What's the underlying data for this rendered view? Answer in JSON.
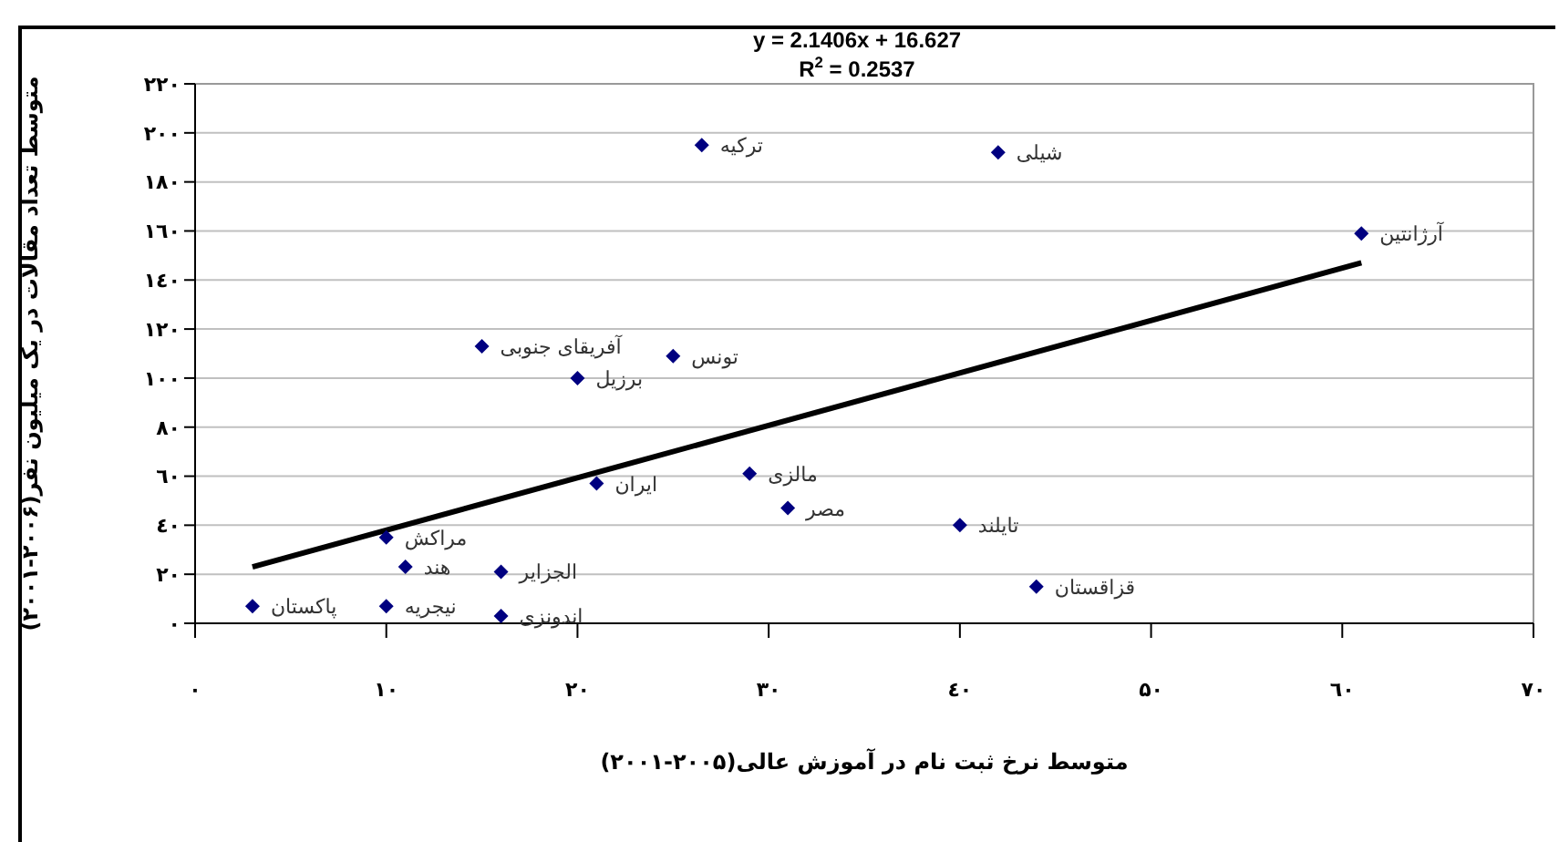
{
  "chart_data": {
    "type": "scatter",
    "xlabel": "متوسط نرخ  ثبت نام در آموزش عالی(۲۰۰۵-۲۰۰۱)",
    "ylabel": "متوسط تعداد مقالات در یک میلیون نفر(۲۰۰۶-۲۰۰۱)",
    "xlim": [
      0,
      70
    ],
    "xticks": [
      {
        "value": 0,
        "label": "۰"
      },
      {
        "value": 10,
        "label": "۱۰"
      },
      {
        "value": 20,
        "label": "۲۰"
      },
      {
        "value": 30,
        "label": "۳۰"
      },
      {
        "value": 40,
        "label": "٤۰"
      },
      {
        "value": 50,
        "label": "۵۰"
      },
      {
        "value": 60,
        "label": "٦۰"
      },
      {
        "value": 70,
        "label": "۷۰"
      }
    ],
    "ylim": [
      0,
      220
    ],
    "yticks": [
      {
        "value": 0,
        "label": "۰"
      },
      {
        "value": 20,
        "label": "۲۰"
      },
      {
        "value": 40,
        "label": "٤۰"
      },
      {
        "value": 60,
        "label": "٦۰"
      },
      {
        "value": 80,
        "label": "۸۰"
      },
      {
        "value": 100,
        "label": "۱۰۰"
      },
      {
        "value": 120,
        "label": "۱۲۰"
      },
      {
        "value": 140,
        "label": "۱٤۰"
      },
      {
        "value": 160,
        "label": "۱٦۰"
      },
      {
        "value": 180,
        "label": "۱۸۰"
      },
      {
        "value": 200,
        "label": "۲۰۰"
      },
      {
        "value": 220,
        "label": "۲۲۰"
      }
    ],
    "grid": "y",
    "marker": "diamond",
    "series": [
      {
        "color": "#000080",
        "x": [
          3,
          10,
          10,
          11,
          16,
          16,
          21,
          15,
          20,
          25,
          26.5,
          42,
          61,
          29,
          31,
          40,
          44
        ],
        "values": [
          7,
          7,
          35,
          23,
          21,
          3,
          57,
          113,
          100,
          109,
          195,
          192,
          159,
          61,
          47,
          40,
          15
        ]
      },
      {
        "type": "line",
        "color": "#000000",
        "x": [
          3,
          61
        ],
        "values": [
          23,
          147
        ],
        "line_style": "solid",
        "marker": "none"
      }
    ],
    "annotations": [
      "y = 2.1406x + 16.627",
      "R$^{2}$ = 0.2537",
      {
        "text": "پاکستان",
        "x": 3,
        "y": 7
      },
      {
        "text": "نیجریه",
        "x": 10,
        "y": 7
      },
      {
        "text": "مراکش",
        "x": 10,
        "y": 35
      },
      {
        "text": "هند",
        "x": 11,
        "y": 23
      },
      {
        "text": "الجزایر",
        "x": 16,
        "y": 21
      },
      {
        "text": "اندونزی",
        "x": 16,
        "y": 3
      },
      {
        "text": "ایران",
        "x": 21,
        "y": 57
      },
      {
        "text": "آفریقای جنوبی",
        "x": 15,
        "y": 113
      },
      {
        "text": "برزیل",
        "x": 20,
        "y": 100
      },
      {
        "text": "تونس",
        "x": 25,
        "y": 109
      },
      {
        "text": "ترکیه",
        "x": 26.5,
        "y": 195
      },
      {
        "text": "شیلی",
        "x": 42,
        "y": 192
      },
      {
        "text": "آرژانتین",
        "x": 61,
        "y": 159
      },
      {
        "text": "مالزی",
        "x": 29,
        "y": 61
      },
      {
        "text": "مصر",
        "x": 31,
        "y": 47
      },
      {
        "text": "تایلند",
        "x": 40,
        "y": 40
      },
      {
        "text": "قزاقستان",
        "x": 44,
        "y": 15
      }
    ]
  }
}
